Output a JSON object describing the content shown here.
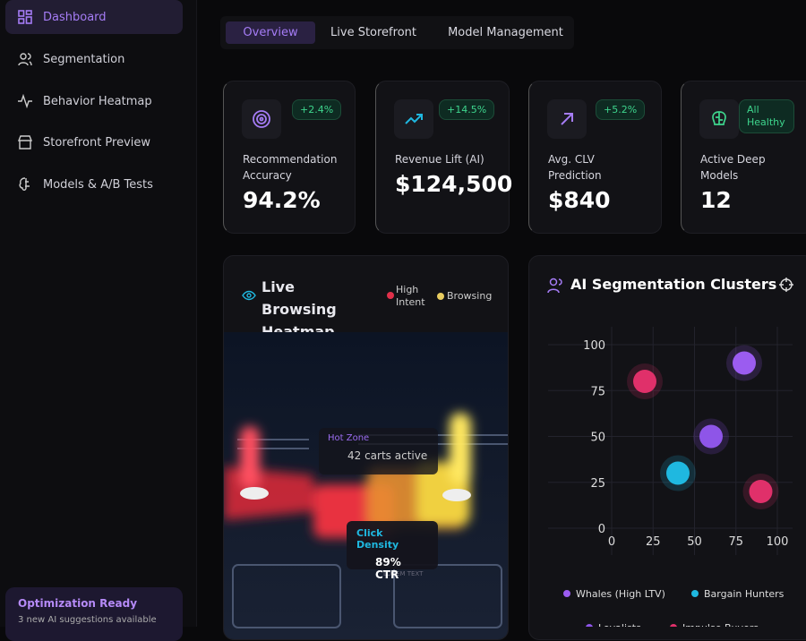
{
  "sidebar": {
    "nav": [
      "Dashboard",
      "Segmentation",
      "Behavior Heatmap",
      "Storefront Preview",
      "Models & A/B Tests"
    ],
    "promo": {
      "title": "Optimization Ready",
      "text": "3 new AI suggestions available"
    }
  },
  "tabs": [
    "Overview",
    "Live Storefront",
    "Model Management"
  ],
  "kpis": [
    {
      "badge": "+2.4%",
      "label": "Recommendation Accuracy",
      "value": "94.2%"
    },
    {
      "badge": "+14.5%",
      "label": "Revenue Lift (AI)",
      "value": "$124,500"
    },
    {
      "badge": "+5.2%",
      "label": "Avg. CLV Prediction",
      "value": "$840"
    },
    {
      "badge": "All Healthy",
      "label": "Active Deep Models",
      "value": "12"
    }
  ],
  "heatmap": {
    "title": "Live Browsing Heatmap",
    "legend": [
      "High Intent",
      "Browsing"
    ],
    "hot_zone": "Hot Zone",
    "carts": "42 carts active",
    "density_label": "Click Density",
    "ctr": "89% CTR",
    "sign": "LOREM TEXT"
  },
  "chart_data": {
    "type": "scatter",
    "title": "AI Segmentation Clusters",
    "xlim": [
      0,
      100
    ],
    "ylim": [
      0,
      100
    ],
    "xticks": [
      0,
      25,
      50,
      75,
      100
    ],
    "yticks": [
      0,
      25,
      50,
      75,
      100
    ],
    "grid": true,
    "series": [
      {
        "name": "Whales (High LTV)",
        "color": "#9b5cf0",
        "x": [
          80
        ],
        "y": [
          90
        ]
      },
      {
        "name": "Bargain Hunters",
        "color": "#1fb8e0",
        "x": [
          40
        ],
        "y": [
          30
        ]
      },
      {
        "name": "Loyalists",
        "color": "#8e55e8",
        "x": [
          60
        ],
        "y": [
          50
        ]
      },
      {
        "name": "Impulse Buyers",
        "color": "#e0306a",
        "x": [
          20,
          90
        ],
        "y": [
          80,
          20
        ]
      }
    ]
  }
}
